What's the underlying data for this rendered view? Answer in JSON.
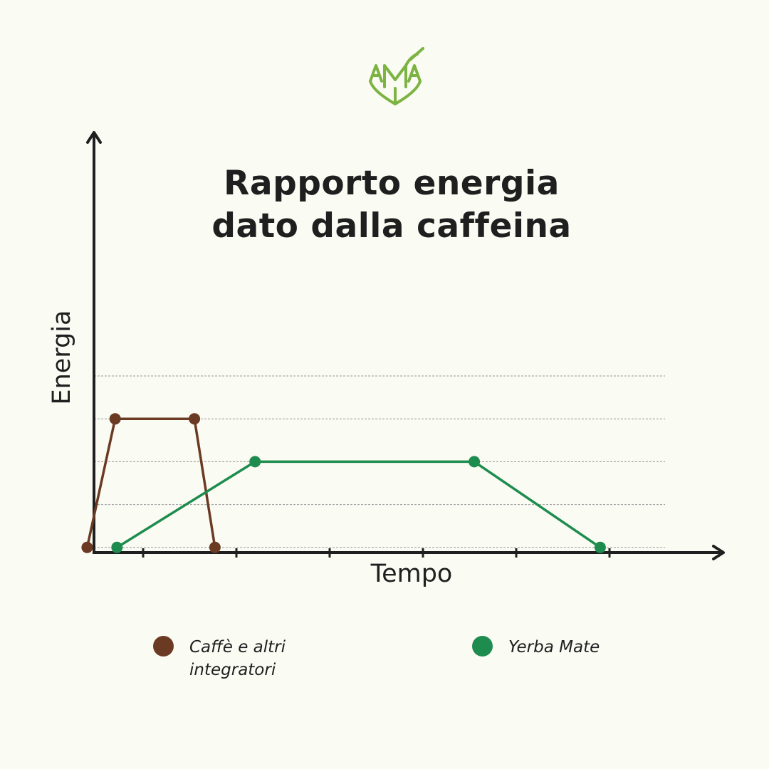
{
  "logo": {
    "text": "AMA",
    "color": "#7cb342",
    "icon": "mate-gourd-logo"
  },
  "chart_data": {
    "type": "line",
    "title": "Rapporto energia\ndato dalla caffeina",
    "title_lines": [
      "Rapporto energia",
      "dato dalla caffeina"
    ],
    "xlabel": "Tempo",
    "ylabel": "Energia",
    "xlim": [
      0,
      6
    ],
    "ylim": [
      0,
      6
    ],
    "x_ticks": [
      1,
      2,
      3,
      4,
      5,
      6
    ],
    "grid": true,
    "grid_levels": [
      1,
      2,
      3,
      4,
      5
    ],
    "legend_position": "bottom",
    "series": [
      {
        "name": "Caffè e altri integratori",
        "color": "#6b3a23",
        "points": [
          [
            0.4,
            1
          ],
          [
            0.7,
            4
          ],
          [
            1.55,
            4
          ],
          [
            1.77,
            1
          ]
        ]
      },
      {
        "name": "Yerba Mate",
        "color": "#1e8c4e",
        "points": [
          [
            0.72,
            1
          ],
          [
            2.2,
            3
          ],
          [
            4.55,
            3
          ],
          [
            5.9,
            1
          ]
        ]
      }
    ]
  },
  "legend": [
    {
      "label": "Caffè e altri integratori",
      "color": "#6b3a23"
    },
    {
      "label": "Yerba Mate",
      "color": "#1e8c4e"
    }
  ]
}
